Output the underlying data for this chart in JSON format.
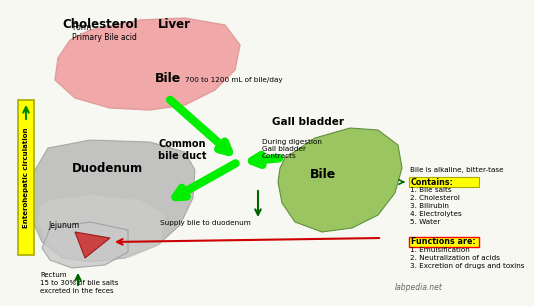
{
  "bg_color": "#f8f8f3",
  "liver_color": "#f0a0a0",
  "duodenum_color": "#b0b0b0",
  "duodenum_color2": "#c8c8c8",
  "gallbladder_color": "#90c050",
  "jejunum_color": "#cc3333",
  "green_arrow_color": "#00ee00",
  "red_arrow_color": "#cc0000",
  "teal_arrow_color": "#008800",
  "yellow_box_color": "#ffff00",
  "sidebar_color": "#ffff00",
  "cholesterol_text": "Cholesterol",
  "liver_label": "Liver",
  "bile_label1": "Bile",
  "bile_note": "700 to 1200 mL of bile/day",
  "common_bile_duct": "Common\nbile duct",
  "gall_bladder": "Gall bladder",
  "bile_label2": "Bile",
  "duodenum_label": "Duodenum",
  "jejunum_label": "Jejunum",
  "rectum_text": "Rectum\n15 to 30% of bile salts\nexcreted in the feces",
  "digestion_text": "During digestion\nGall bladder\nContracts",
  "supply_text": "Supply bile to duodenum",
  "form_text": "Form\nPrimary Bile acid",
  "bile_alkaline": "Bile is alkaline, bitter-tase",
  "contains_label": "Contains:",
  "contains_items": [
    "1. Bile salts",
    "2. Cholesterol",
    "3. Bilirubin",
    "4. Electrolytes",
    "5. Water"
  ],
  "functions_label": "Functions are:",
  "functions_items": [
    "1. Emulsification",
    "2. Neutralization of acids",
    "3. Excretion of drugs and toxins"
  ],
  "entero_text": "Enterohepatic circulation",
  "labpedia": "labpedia.net"
}
